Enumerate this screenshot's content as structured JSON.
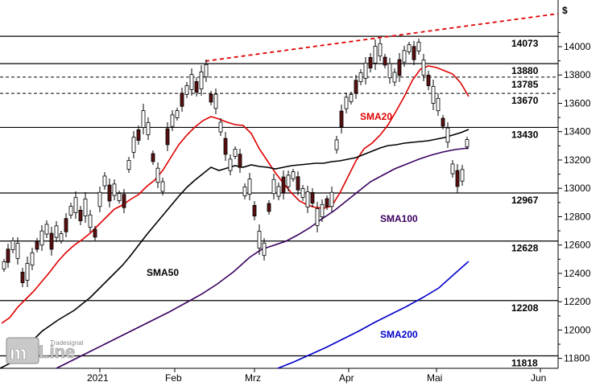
{
  "chart_data": {
    "type": "candlestick",
    "currency_symbol": "$",
    "ylim": [
      11780,
      14160
    ],
    "y_ticks": [
      11800,
      12000,
      12200,
      12400,
      12600,
      12800,
      13000,
      13200,
      13400,
      13600,
      13800,
      14000
    ],
    "x_tick_labels": [
      "2021",
      "Feb",
      "Mrz",
      "Apr",
      "Mai",
      "Jun"
    ],
    "levels": [
      {
        "label": "14073",
        "value": 14073,
        "style": "solid"
      },
      {
        "label": "13880",
        "value": 13880,
        "style": "solid"
      },
      {
        "label": "13785",
        "value": 13785,
        "style": "dashed"
      },
      {
        "label": "13670",
        "value": 13670,
        "style": "dashed"
      },
      {
        "label": "13430",
        "value": 13430,
        "style": "solid"
      },
      {
        "label": "12967",
        "value": 12967,
        "style": "solid"
      },
      {
        "label": "12628",
        "value": 12628,
        "style": "solid"
      },
      {
        "label": "12208",
        "value": 12208,
        "style": "solid"
      },
      {
        "label": "11818",
        "value": 11818,
        "style": "solid"
      }
    ],
    "moving_averages": [
      {
        "name": "SMA20",
        "color": "#e00000"
      },
      {
        "name": "SMA50",
        "color": "#000000"
      },
      {
        "name": "SMA100",
        "color": "#3a0060"
      },
      {
        "name": "SMA200",
        "color": "#0000cc"
      }
    ],
    "trend_line": {
      "color": "#e00000",
      "style": "dashed"
    },
    "watermark": "Tradesignal online"
  }
}
